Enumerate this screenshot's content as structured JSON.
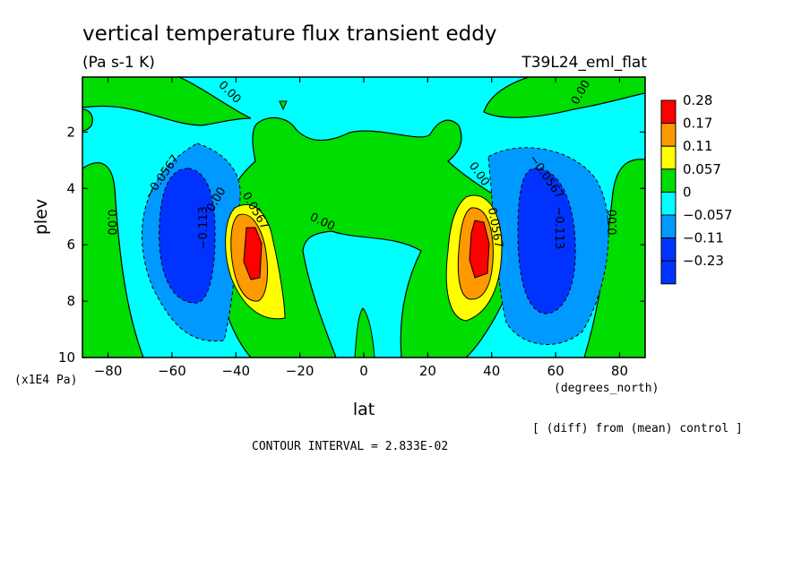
{
  "header": {
    "title": "vertical temperature flux transient eddy",
    "units": "(Pa s-1 K)",
    "experiment": "T39L24_eml_flat"
  },
  "footer": {
    "y_unit_note": "(x1E4 Pa)",
    "x_unit_note": "(degrees_north)",
    "diff_note": "[ (diff) from (mean) control ]",
    "contour_interval": "CONTOUR INTERVAL = 2.833E-02"
  },
  "chart_data": {
    "type": "heatmap",
    "title": "vertical temperature flux transient eddy",
    "xlabel": "lat",
    "ylabel": "plev",
    "xlim": [
      -88,
      88
    ],
    "ylim": [
      10,
      0.05
    ],
    "x_ticks": [
      -80,
      -60,
      -40,
      -20,
      0,
      20,
      40,
      60,
      80
    ],
    "x_tick_labels": [
      "−80",
      "−60",
      "−40",
      "−20",
      "0",
      "20",
      "40",
      "60",
      "80"
    ],
    "y_ticks": [
      2,
      4,
      6,
      8,
      10
    ],
    "y_tick_labels": [
      "2",
      "4",
      "6",
      "8",
      "10"
    ],
    "grid": false,
    "legend_placement": "right",
    "color_levels": [
      {
        "label": "0.28",
        "color": "#ff0000"
      },
      {
        "label": "0.17",
        "color": "#ff9900"
      },
      {
        "label": "0.11",
        "color": "#ffff00"
      },
      {
        "label": "0.057",
        "color": "#00dd00"
      },
      {
        "label": "0",
        "color": "#00ffff"
      },
      {
        "label": "−0.057",
        "color": "#0099ff"
      },
      {
        "label": "−0.11",
        "color": "#0033ff"
      },
      {
        "label": "−0.23",
        "color": "#0033ff"
      }
    ],
    "contour_interval": 0.02833,
    "contour_labels": [
      {
        "text": "0.00",
        "lat": -42,
        "plev": 0.6,
        "rot": 45
      },
      {
        "text": "0.00",
        "lat": 68,
        "plev": 0.6,
        "rot": -60
      },
      {
        "text": "−0.0567",
        "lat": -63,
        "plev": 3.6,
        "rot": -55
      },
      {
        "text": "−0.0567",
        "lat": 57,
        "plev": 3.6,
        "rot": 55
      },
      {
        "text": "0.00",
        "lat": -79,
        "plev": 5.2,
        "rot": 90
      },
      {
        "text": "0.00",
        "lat": 78,
        "plev": 5.2,
        "rot": -90
      },
      {
        "text": "−0.113",
        "lat": -50,
        "plev": 5.4,
        "rot": -90
      },
      {
        "text": "−0.113",
        "lat": 61,
        "plev": 5.4,
        "rot": 90
      },
      {
        "text": "0.00",
        "lat": -46,
        "plev": 4.4,
        "rot": -60
      },
      {
        "text": "0.00",
        "lat": 36,
        "plev": 3.5,
        "rot": 55
      },
      {
        "text": "0.0567",
        "lat": -34,
        "plev": 4.8,
        "rot": 60
      },
      {
        "text": "0.0567",
        "lat": 41,
        "plev": 5.4,
        "rot": 80
      },
      {
        "text": "0.00",
        "lat": -13,
        "plev": 5.2,
        "rot": 25
      }
    ]
  }
}
